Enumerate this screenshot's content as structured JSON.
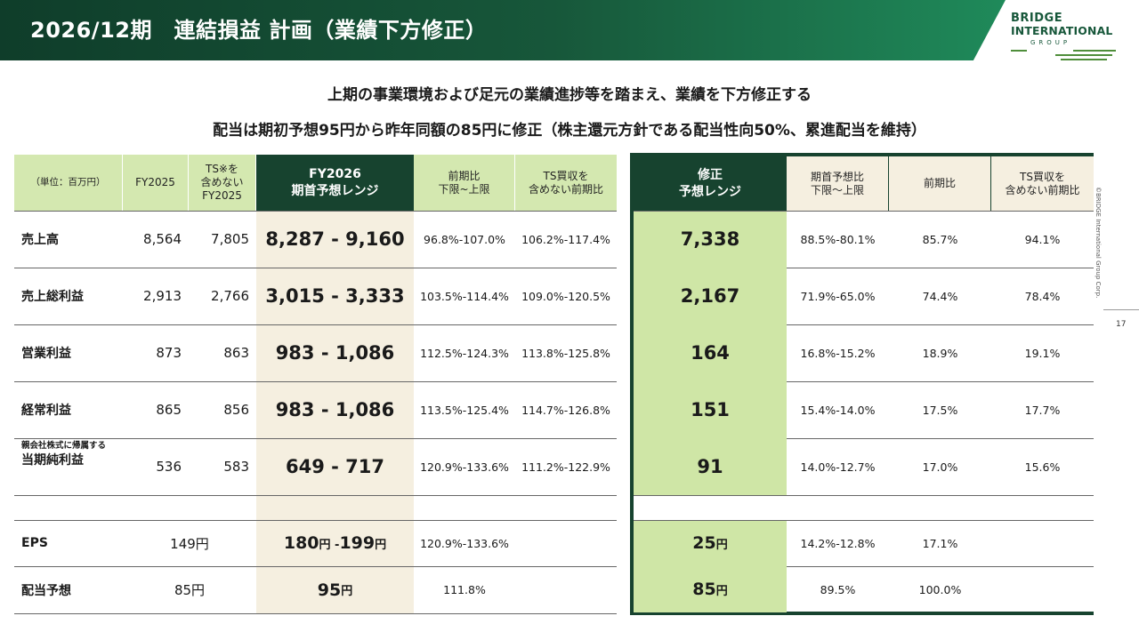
{
  "header": {
    "title": "2026/12期　連結損益 計画（業績下方修正）"
  },
  "logo": {
    "line1": "BRIDGE",
    "line2": "INTERNATIONAL",
    "line3": "GROUP"
  },
  "subtitle": {
    "line1": "上期の事業環境および足元の業績進捗等を踏まえ、業績を下方修正する",
    "line2": "配当は期初予想95円から昨年同額の85円に修正（株主還元方針である配当性向50%、累進配当を維持）"
  },
  "side": {
    "copyright": "©BRIDGE International Group Corp.",
    "page": "17"
  },
  "left_headers": {
    "unit": "（単位：百万円）",
    "fy2025": "FY2025",
    "ts_a": "TS※を",
    "ts_b": "含めない",
    "ts_c": "FY2025",
    "plan_a": "FY2026",
    "plan_b": "期首予想レンジ",
    "yoy_a": "前期比",
    "yoy_b": "下限~上限",
    "tsyoy_a": "TS買収を",
    "tsyoy_b": "含めない前期比"
  },
  "right_headers": {
    "rev_a": "修正",
    "rev_b": "予想レンジ",
    "vs_a": "期首予想比",
    "vs_b": "下限〜上限",
    "yoy": "前期比",
    "tsyoy_a": "TS買収を",
    "tsyoy_b": "含めない前期比"
  },
  "rows": [
    {
      "label": "売上高",
      "fy2025": "8,564",
      "ts": "7,805",
      "range": "8,287 - 9,160",
      "yoy": "96.8%-107.0%",
      "tsyoy": "106.2%-117.4%",
      "rev": "7,338",
      "vs": "88.5%-80.1%",
      "ryoy": "85.7%",
      "rtsyoy": "94.1%"
    },
    {
      "label": "売上総利益",
      "fy2025": "2,913",
      "ts": "2,766",
      "range": "3,015 - 3,333",
      "yoy": "103.5%-114.4%",
      "tsyoy": "109.0%-120.5%",
      "rev": "2,167",
      "vs": "71.9%-65.0%",
      "ryoy": "74.4%",
      "rtsyoy": "78.4%"
    },
    {
      "label": "営業利益",
      "fy2025": "873",
      "ts": "863",
      "range": "983 - 1,086",
      "yoy": "112.5%-124.3%",
      "tsyoy": "113.8%-125.8%",
      "rev": "164",
      "vs": "16.8%-15.2%",
      "ryoy": "18.9%",
      "rtsyoy": "19.1%"
    },
    {
      "label": "経常利益",
      "fy2025": "865",
      "ts": "856",
      "range": "983 - 1,086",
      "yoy": "113.5%-125.4%",
      "tsyoy": "114.7%-126.8%",
      "rev": "151",
      "vs": "15.4%-14.0%",
      "ryoy": "17.5%",
      "rtsyoy": "17.7%"
    },
    {
      "label_small": "親会社株式に帰属する",
      "label": "当期純利益",
      "fy2025": "536",
      "ts": "583",
      "range": "649 - 717",
      "yoy": "120.9%-133.6%",
      "tsyoy": "111.2%-122.9%",
      "rev": "91",
      "vs": "14.0%-12.7%",
      "ryoy": "17.0%",
      "rtsyoy": "15.6%"
    }
  ],
  "eps": {
    "label": "EPS",
    "fy2025": "149円",
    "range_lo": "180",
    "range_sep": "円 - ",
    "range_hi": "199",
    "yen": "円",
    "yoy": "120.9%-133.6%",
    "rev": "25",
    "vs": "14.2%-12.8%",
    "ryoy": "17.1%"
  },
  "div": {
    "label": "配当予想",
    "fy2025": "85円",
    "range": "95",
    "yen": "円",
    "yoy": "111.8%",
    "rev": "85",
    "vs": "89.5%",
    "ryoy": "100.0%"
  }
}
